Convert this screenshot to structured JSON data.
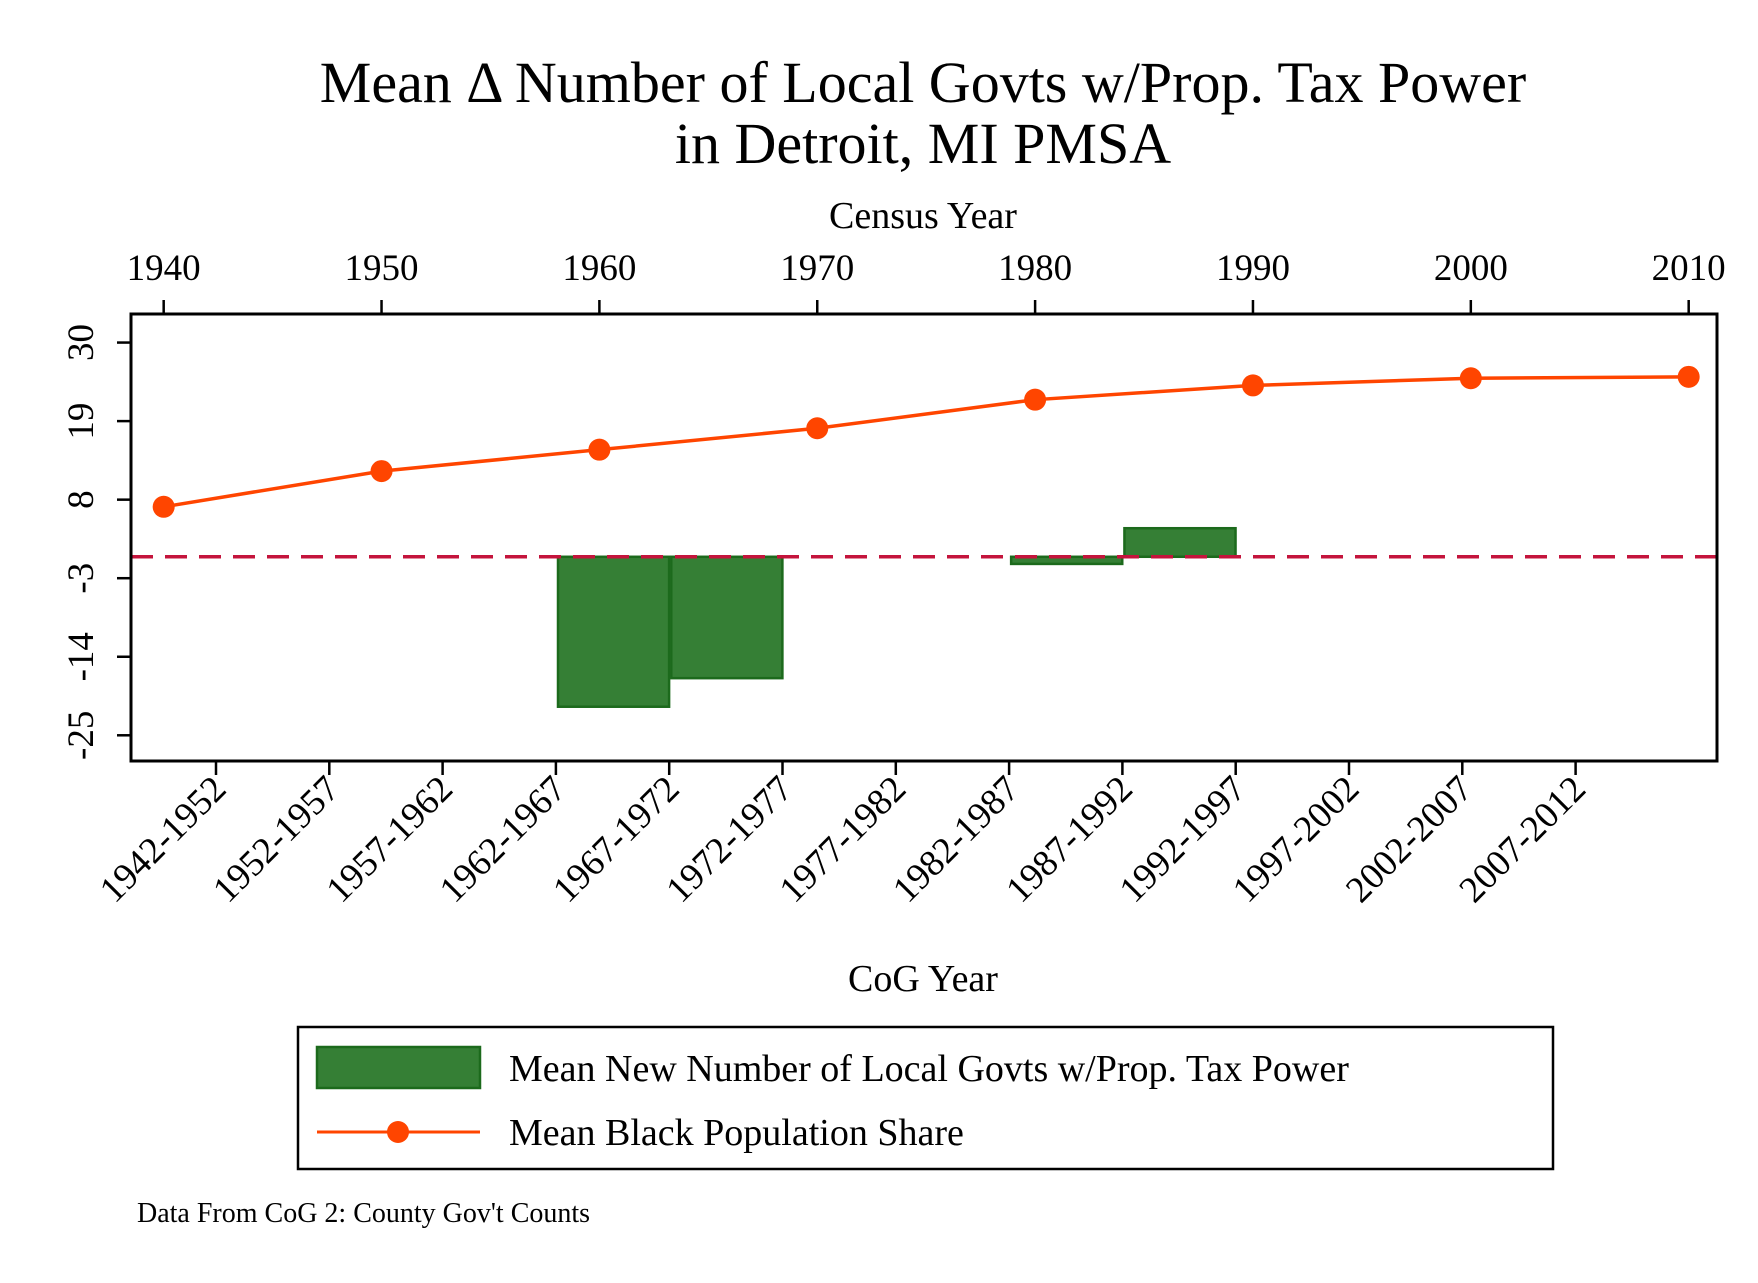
{
  "chart_data": {
    "type": "bar",
    "title": "Mean Δ Number of Local Govts w/Prop. Tax Power",
    "subtitle": "in Detroit, MI PMSA",
    "top_axis": {
      "label": "Census Year",
      "ticks": [
        "1940",
        "1950",
        "1960",
        "1970",
        "1980",
        "1990",
        "2000",
        "2010"
      ],
      "range": [
        1938.5,
        2011.3
      ]
    },
    "bottom_axis": {
      "label": "CoG Year",
      "categories": [
        "1942-1952",
        "1952-1957",
        "1957-1962",
        "1962-1967",
        "1967-1972",
        "1972-1977",
        "1977-1982",
        "1982-1987",
        "1987-1992",
        "1992-1997",
        "1997-2002",
        "2002-2007",
        "2007-2012"
      ]
    },
    "y_axis": {
      "ticks": [
        "30",
        "19",
        "8",
        "-3",
        "-14",
        "-25"
      ],
      "tick_values": [
        30,
        19,
        8,
        -3,
        -14,
        -25
      ],
      "range": [
        -28.6,
        34
      ]
    },
    "grid": false,
    "zero_line": {
      "value": 0,
      "color": "#c4143c",
      "style": "dashed"
    },
    "series": [
      {
        "name": "Mean New Number of Local Govts w/Prop. Tax Power",
        "kind": "bar",
        "color": "#357f35",
        "edge_color": "#1c6a1c",
        "bars": [
          {
            "from": 1958.1,
            "to": 1963.2,
            "value": -21
          },
          {
            "from": 1963.3,
            "to": 1968.4,
            "value": -17
          },
          {
            "from": 1978.9,
            "to": 1984.0,
            "value": -1
          },
          {
            "from": 1984.1,
            "to": 1989.2,
            "value": 4
          }
        ]
      },
      {
        "name": "Mean Black Population Share",
        "kind": "line",
        "color": "#ff4500",
        "x": [
          1940,
          1950,
          1960,
          1970,
          1980,
          1990,
          2000,
          2010
        ],
        "values": [
          7,
          12,
          15,
          18,
          22,
          24,
          25,
          25.2
        ]
      }
    ],
    "legend": {
      "position": "bottom",
      "entries": [
        "Mean New Number of Local Govts w/Prop. Tax Power",
        "Mean Black Population Share"
      ]
    },
    "note": "Data From CoG 2: County Gov't Counts"
  }
}
